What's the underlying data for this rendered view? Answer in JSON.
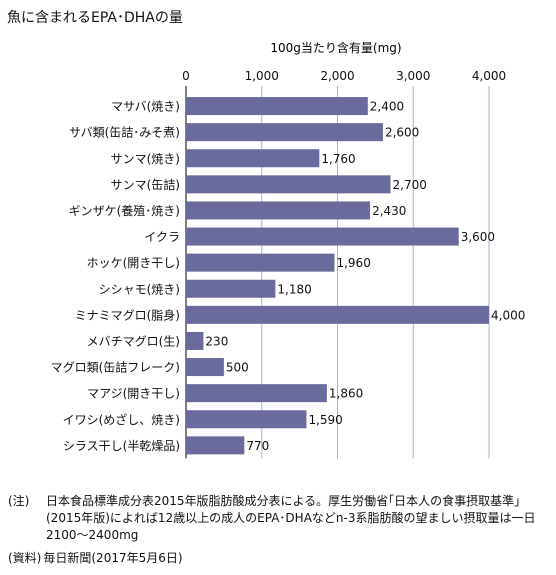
{
  "chart_data": {
    "type": "bar",
    "orientation": "horizontal",
    "title": "魚に含まれるEPA･DHAの量",
    "xlabel": "100g当たり含有量(mg)",
    "xlim": [
      0,
      4000
    ],
    "xticks": [
      0,
      1000,
      2000,
      3000,
      4000
    ],
    "xtick_labels": [
      "0",
      "1,000",
      "2,000",
      "3,000",
      "4,000"
    ],
    "grid": true,
    "bar_color": "#6a6a9c",
    "categories": [
      "マサバ(焼き)",
      "サバ類(缶詰･みそ煮)",
      "サンマ(焼き)",
      "サンマ(缶詰)",
      "ギンザケ(養殖･焼き)",
      "イクラ",
      "ホッケ(開き干し)",
      "シシャモ(焼き)",
      "ミナミマグロ(脂身)",
      "メバチマグロ(生)",
      "マグロ類(缶詰フレーク)",
      "マアジ(開き干し)",
      "イワシ(めざし、焼き)",
      "シラス干し(半乾燥品)"
    ],
    "values": [
      2400,
      2600,
      1760,
      2700,
      2430,
      3600,
      1960,
      1180,
      4000,
      230,
      500,
      1860,
      1590,
      770
    ],
    "data_labels": [
      "2,400",
      "2,600",
      "1,760",
      "2,700",
      "2,430",
      "3,600",
      "1,960",
      "1,180",
      "4,000",
      "230",
      "500",
      "1,860",
      "1,590",
      "770"
    ]
  },
  "notes": {
    "note_label": "(注)",
    "note_text": "日本食品標準成分表2015年版脂肪酸成分表による。厚生労働省｢日本人の食事摂取基準｣(2015年版)によれば12歳以上の成人のEPA･DHAなどn-3系脂肪酸の望ましい摂取量は一日2100～2400mg",
    "source_label": "(資料)",
    "source_text": "毎日新聞(2017年5月6日)"
  }
}
